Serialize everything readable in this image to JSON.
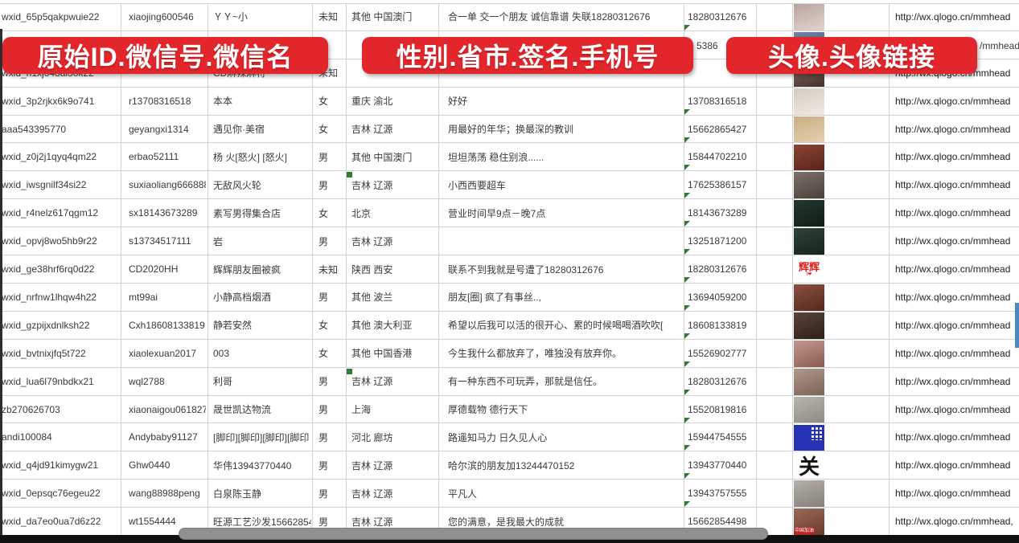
{
  "banners": [
    {
      "label": "原始ID.微信号.微信名"
    },
    {
      "label": "性别.省市.签名.手机号"
    },
    {
      "label": "头像.头像链接"
    }
  ],
  "partials": {
    "row2_phone": "5386",
    "row2_link": "/mmhead"
  },
  "colors": {
    "banner_red": "#e2262b",
    "grid_line": "#d2d2d2",
    "cell_text": "#3a3a3a",
    "link_text": "#222222",
    "comment_green": "#2e7d32",
    "scrollbar_gray": "#909090",
    "bottom_bar_black": "#101010",
    "vscroll_blue": "#4f87c5"
  },
  "table": {
    "rows": [
      {
        "wxid": "wxid_65p5qakpwuie22",
        "wxnum": "xiaojing600546",
        "name": "ＹＹ~小",
        "gender": "未知",
        "region": "其他 中国澳门",
        "signature": "合一单 交一个朋友 诚信靠谱 失联18280312676",
        "phone": "18280312676",
        "link": "http://wx.qlogo.cn/mmhead",
        "avatar": {
          "kind": "photo",
          "c1": "#b9a49e",
          "c2": "#e0d4cc"
        }
      },
      {
        "wxid": "",
        "wxnum": "",
        "name": "",
        "gender": "",
        "region": "",
        "signature": "",
        "phone": "",
        "link": "",
        "avatar": {
          "kind": "photo",
          "c1": "#6f82a3",
          "c2": "#4d5f7d"
        }
      },
      {
        "wxid": "wxid_h1xj048al3ok22",
        "wxnum": "",
        "name": "CD麻辣麻将",
        "gender": "未知",
        "region": "",
        "signature": "",
        "phone": "",
        "link": "http://wx.qlogo.cn/mmhead",
        "avatar": {
          "kind": "photo",
          "c1": "#8a6f63",
          "c2": "#443028"
        }
      },
      {
        "wxid": "wxid_3p2rjkx6k9o741",
        "wxnum": "r13708316518",
        "name": "本本",
        "gender": "女",
        "region": "重庆 渝北",
        "signature": "好好",
        "phone": "13708316518",
        "link": "http://wx.qlogo.cn/mmhead",
        "avatar": {
          "kind": "photo",
          "c1": "#d3ccc1",
          "c2": "#efeae2"
        }
      },
      {
        "wxid": "aaa543395770",
        "wxnum": "geyangxi1314",
        "name": "遇见你·美宿",
        "gender": "女",
        "region": "吉林 辽源",
        "signature": "用最好的年华；换最深的教训",
        "phone": "15662865427",
        "link": "http://wx.qlogo.cn/mmhead",
        "avatar": {
          "kind": "photo",
          "c1": "#c9ad85",
          "c2": "#e4d0ac"
        }
      },
      {
        "wxid": "wxid_z0j2j1qyq4qm22",
        "wxnum": "erbao52111",
        "name": "杨 火[怒火] [怒火]",
        "gender": "男",
        "region": "其他 中国澳门",
        "signature": "坦坦荡荡 稳住别浪......",
        "phone": "15844702210",
        "link": "http://wx.qlogo.cn/mmhead",
        "avatar": {
          "kind": "photo",
          "c1": "#8a4434",
          "c2": "#5a241a"
        }
      },
      {
        "wxid": "wxid_iwsgnilf34si22",
        "wxnum": "suxiaoliang666888",
        "name": "无敌风火轮",
        "gender": "男",
        "region": "吉林 辽源",
        "signature": "小西西要超车",
        "phone": "17625386157",
        "link": "http://wx.qlogo.cn/mmhead",
        "region_mark": true,
        "avatar": {
          "kind": "photo",
          "c1": "#7d716a",
          "c2": "#4a403a"
        }
      },
      {
        "wxid": "wxid_r4nelz617qgm12",
        "wxnum": "sx18143673289",
        "name": "素写男得集合店",
        "gender": "女",
        "region": "北京",
        "signature": "营业时间早9点－晚7点",
        "phone": "18143673289",
        "link": "http://wx.qlogo.cn/mmhead",
        "avatar": {
          "kind": "photo",
          "c1": "#24382c",
          "c2": "#101e15"
        }
      },
      {
        "wxid": "wxid_opvj8wo5hb9r22",
        "wxnum": "s13734517111",
        "name": "岩",
        "gender": "男",
        "region": "吉林 辽源",
        "signature": "",
        "phone": "13251871200",
        "link": "http://wx.qlogo.cn/mmhead",
        "avatar": {
          "kind": "photo",
          "c1": "#2c4436",
          "c2": "#16241a"
        }
      },
      {
        "wxid": "wxid_ge38hrf6rq0d22",
        "wxnum": "CD2020HH",
        "name": "辉辉朋友圈被疯",
        "gender": "未知",
        "region": "陕西 西安",
        "signature": "联系不到我就是号遭了18280312676",
        "phone": "18280312676",
        "link": "http://wx.qlogo.cn/mmhead",
        "avatar": {
          "kind": "wordmark",
          "text": "辉辉",
          "sub": "I❤",
          "color": "#e02020"
        }
      },
      {
        "wxid": "wxid_nrfnw1lhqw4h22",
        "wxnum": "mt99ai",
        "name": "小静高档烟酒",
        "gender": "男",
        "region": "其他 波兰",
        "signature": "朋友[圈] 疯了有事丝..,",
        "phone": "13694059200",
        "link": "http://wx.qlogo.cn/mmhead",
        "avatar": {
          "kind": "photo",
          "c1": "#8a5040",
          "c2": "#55291e"
        }
      },
      {
        "wxid": "wxid_gzpijxdnlksh22",
        "wxnum": "Cxh18608133819",
        "name": "静若安然",
        "gender": "女",
        "region": "其他 澳大利亚",
        "signature": "希望以后我可以活的很开心、累的时候喝喝酒吹吹[",
        "phone": "18608133819",
        "link": "http://wx.qlogo.cn/mmhead",
        "avatar": {
          "kind": "photo",
          "c1": "#5a4438",
          "c2": "#2e1f18"
        }
      },
      {
        "wxid": "wxid_bvtnixjfq5t722",
        "wxnum": "xiaolexuan2017",
        "name": "003",
        "gender": "女",
        "region": "其他 中国香港",
        "signature": "今生我什么都放弃了，唯独没有放弃你。",
        "phone": "15526902777",
        "link": "http://wx.qlogo.cn/mmhead",
        "avatar": {
          "kind": "photo",
          "c1": "#c49890",
          "c2": "#8a5a50"
        }
      },
      {
        "wxid": "wxid_lua6l79nbdkx21",
        "wxnum": "wql2788",
        "name": "利哥",
        "gender": "男",
        "region": "吉林 辽源",
        "signature": "有一种东西不可玩弄，那就是信任。",
        "phone": "18280312676",
        "link": "http://wx.qlogo.cn/mmhead",
        "region_mark": true,
        "avatar": {
          "kind": "photo",
          "c1": "#b0988a",
          "c2": "#7a6456"
        }
      },
      {
        "wxid": "zb270626703",
        "wxnum": "xiaonaigou061827",
        "name": "晟世凯达物流",
        "gender": "男",
        "region": "上海",
        "signature": "厚德载物 德行天下",
        "phone": "15520819816",
        "link": "http://wx.qlogo.cn/mmhead",
        "avatar": {
          "kind": "photo",
          "c1": "#b8b4ae",
          "c2": "#8e8a84"
        }
      },
      {
        "wxid": "andi100084",
        "wxnum": "Andybaby91127",
        "name": "[脚印][脚印][脚印][脚印",
        "gender": "男",
        "region": "河北 廊坊",
        "signature": "路遥知马力 日久见人心",
        "phone": "15944754555",
        "link": "http://wx.qlogo.cn/mmhead",
        "avatar": {
          "kind": "qrcode",
          "c1": "#2733b5"
        }
      },
      {
        "wxid": "wxid_q4jd91kimygw21",
        "wxnum": "Ghw0440",
        "name": "华伟13943770440",
        "gender": "男",
        "region": "吉林 辽源",
        "signature": "哈尔滨的朋友加13244470152",
        "phone": "13943770440",
        "link": "http://wx.qlogo.cn/mmhead",
        "avatar": {
          "kind": "calligraphy",
          "text": "关",
          "color": "#141414"
        }
      },
      {
        "wxid": "wxid_0epsqc76egeu22",
        "wxnum": "wang88988peng",
        "name": "白泉陈玉静",
        "gender": "男",
        "region": "吉林 辽源",
        "signature": "平凡人",
        "phone": "13943757555",
        "link": "http://wx.qlogo.cn/mmhead",
        "avatar": {
          "kind": "photo",
          "c1": "#b4b0aa",
          "c2": "#847f78"
        }
      },
      {
        "wxid": "wxid_da7eo0ua7d6z22",
        "wxnum": "wt1554444",
        "name": "旺源工艺沙发15662854",
        "gender": "男",
        "region": "吉林 辽源",
        "signature": "您的满意，是我最大的成就",
        "phone": "15662854498",
        "link": "http://wx.qlogo.cn/mmhead,",
        "avatar": {
          "kind": "photo-label",
          "c1": "#9a6a58",
          "c2": "#6a392c",
          "label": "中国加油"
        }
      }
    ]
  }
}
